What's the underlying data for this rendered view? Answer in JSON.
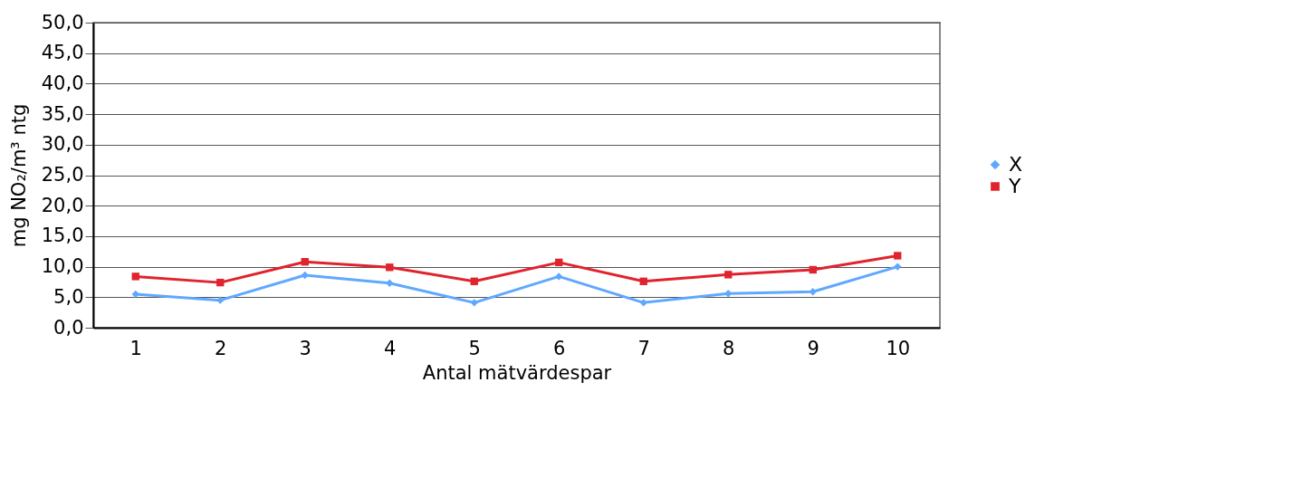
{
  "chart_data": {
    "type": "line",
    "xlabel": "Antal mätvärdespar",
    "ylabel": "mg NO₂/m³ ntg",
    "categories": [
      "1",
      "2",
      "3",
      "4",
      "5",
      "6",
      "7",
      "8",
      "9",
      "10"
    ],
    "series": [
      {
        "name": "X",
        "color": "#5fa8ff",
        "marker": "diamond",
        "values": [
          5.5,
          4.5,
          8.6,
          7.3,
          4.1,
          8.4,
          4.1,
          5.6,
          5.9,
          10.0
        ]
      },
      {
        "name": "Y",
        "color": "#e0232c",
        "marker": "square",
        "values": [
          8.4,
          7.4,
          10.8,
          9.9,
          7.6,
          10.7,
          7.6,
          8.7,
          9.5,
          11.8
        ]
      }
    ],
    "ylim": [
      0,
      50
    ],
    "yticks": [
      {
        "value": 0,
        "label": "0,0"
      },
      {
        "value": 5,
        "label": "5,0"
      },
      {
        "value": 10,
        "label": "10,0"
      },
      {
        "value": 15,
        "label": "15,0"
      },
      {
        "value": 20,
        "label": "20,0"
      },
      {
        "value": 25,
        "label": "25,0"
      },
      {
        "value": 30,
        "label": "30,0"
      },
      {
        "value": 35,
        "label": "35,0"
      },
      {
        "value": 40,
        "label": "40,0"
      },
      {
        "value": 45,
        "label": "45,0"
      },
      {
        "value": 50,
        "label": "50,0"
      }
    ],
    "grid": "y",
    "legend": "right"
  }
}
